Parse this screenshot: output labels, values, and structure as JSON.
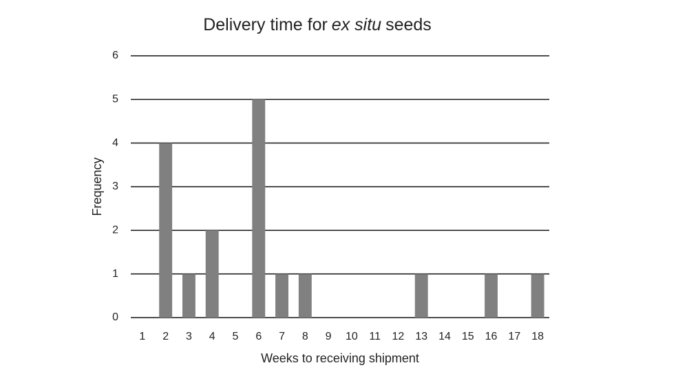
{
  "chart_data": {
    "type": "bar",
    "title_parts": [
      {
        "text": "Delivery time for",
        "italic": false
      },
      {
        "text": "ex situ",
        "italic": true
      },
      {
        "text": "seeds",
        "italic": false
      }
    ],
    "x_label": "Weeks to receiving shipment",
    "y_label": "Frequency",
    "categories": [
      "1",
      "2",
      "3",
      "4",
      "5",
      "6",
      "7",
      "8",
      "9",
      "10",
      "11",
      "12",
      "13",
      "14",
      "15",
      "16",
      "17",
      "18"
    ],
    "values": [
      0,
      4,
      1,
      2,
      0,
      5,
      1,
      1,
      0,
      0,
      0,
      0,
      1,
      0,
      0,
      1,
      0,
      1
    ],
    "color": "#808080",
    "ylim": [
      0,
      6
    ],
    "yticks": [
      0,
      1,
      2,
      3,
      4,
      5,
      6
    ],
    "grid": true
  }
}
